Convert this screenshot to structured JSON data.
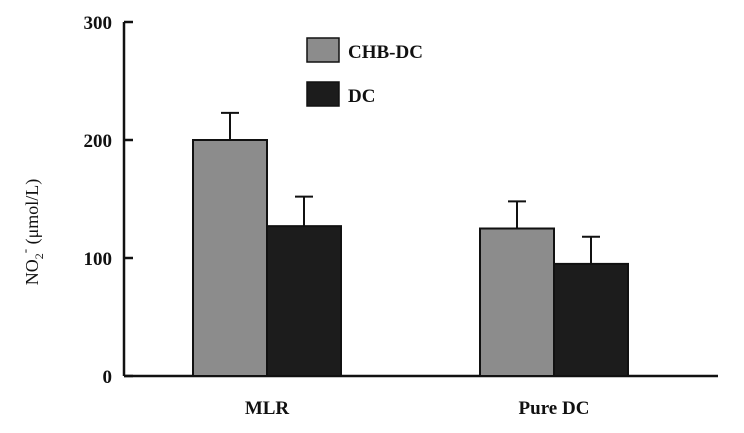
{
  "chart_data": {
    "type": "bar",
    "categories": [
      "MLR",
      "Pure DC"
    ],
    "series": [
      {
        "name": "CHB-DC",
        "values": [
          200,
          125
        ],
        "errors": [
          23,
          23
        ],
        "color": "#8c8c8c"
      },
      {
        "name": "DC",
        "values": [
          127,
          95
        ],
        "errors": [
          25,
          23
        ],
        "color": "#1c1c1c"
      }
    ],
    "ylabel": "NO₂⁻ (μmol/L)",
    "ylabel_parts": {
      "main": "NO",
      "sub": "2",
      "sup": "-",
      "unit": " (μmol/L)"
    },
    "yticks": [
      0,
      100,
      200,
      300
    ],
    "ylim": [
      0,
      300
    ],
    "legend_placement": "top-center",
    "grid": false
  }
}
